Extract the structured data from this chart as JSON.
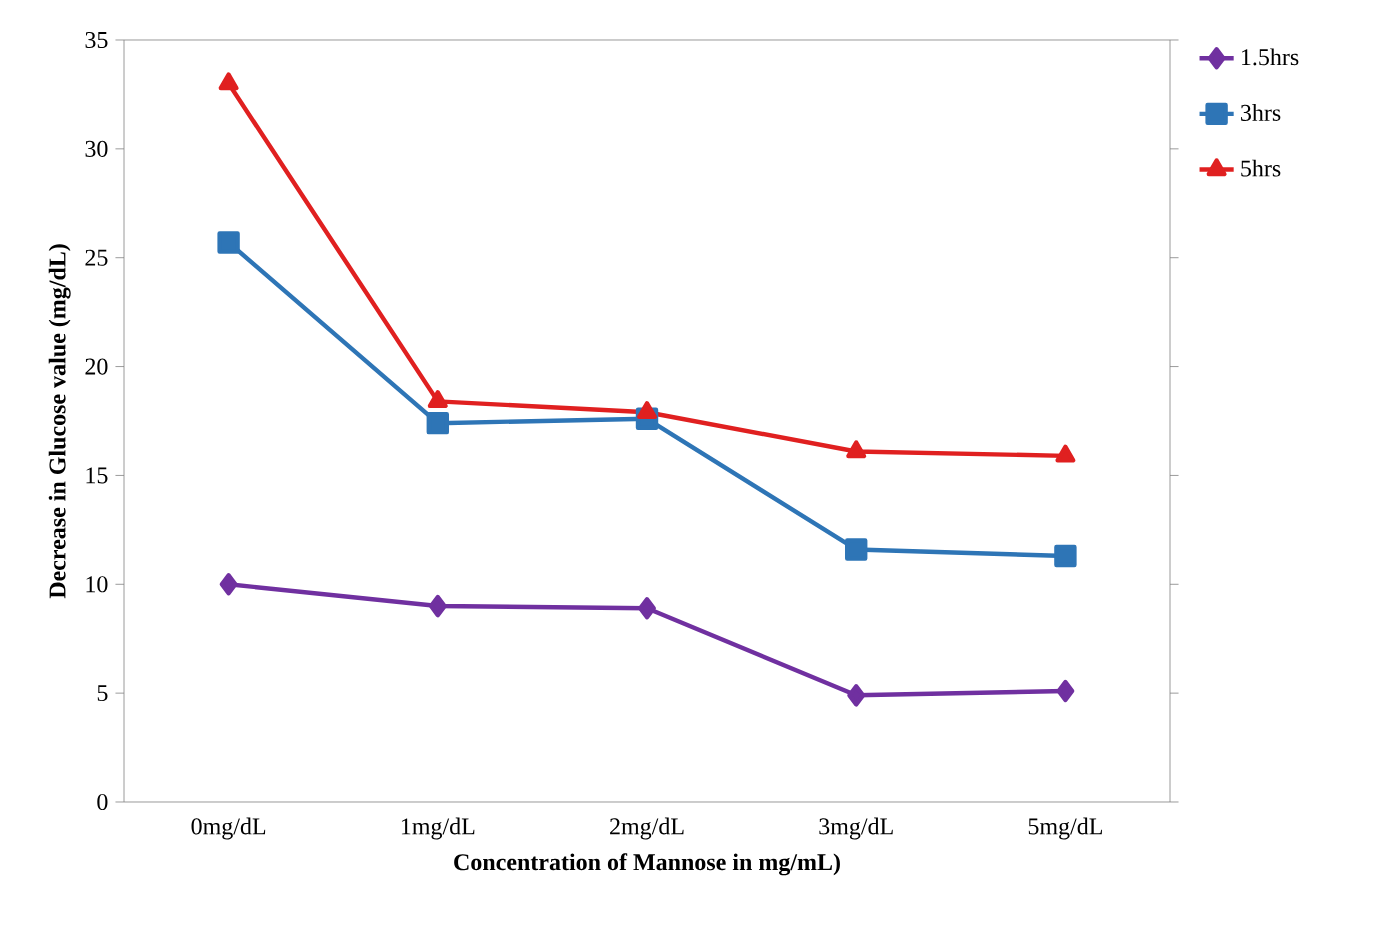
{
  "chart_data": {
    "type": "line",
    "xlabel": "Concentration of Mannose in mg/mL)",
    "ylabel": "Decrease in  Glucose value (mg/dL)",
    "categories": [
      "0mg/dL",
      "1mg/dL",
      "2mg/dL",
      "3mg/dL",
      "5mg/dL"
    ],
    "ylim": [
      0,
      35
    ],
    "yticks": [
      0,
      5,
      10,
      15,
      20,
      25,
      30,
      35
    ],
    "legend": "top right",
    "series": [
      {
        "name": "1.5hrs",
        "color": "#7030a0",
        "marker": "diamond",
        "values": [
          10,
          9.0,
          8.9,
          4.9,
          5.1
        ]
      },
      {
        "name": "3hrs",
        "color": "#2e75b6",
        "marker": "square",
        "values": [
          25.7,
          17.4,
          17.6,
          11.6,
          11.3
        ]
      },
      {
        "name": "5hrs",
        "color": "#e02020",
        "marker": "triangle",
        "values": [
          33.0,
          18.4,
          17.9,
          16.1,
          15.9
        ]
      }
    ]
  }
}
